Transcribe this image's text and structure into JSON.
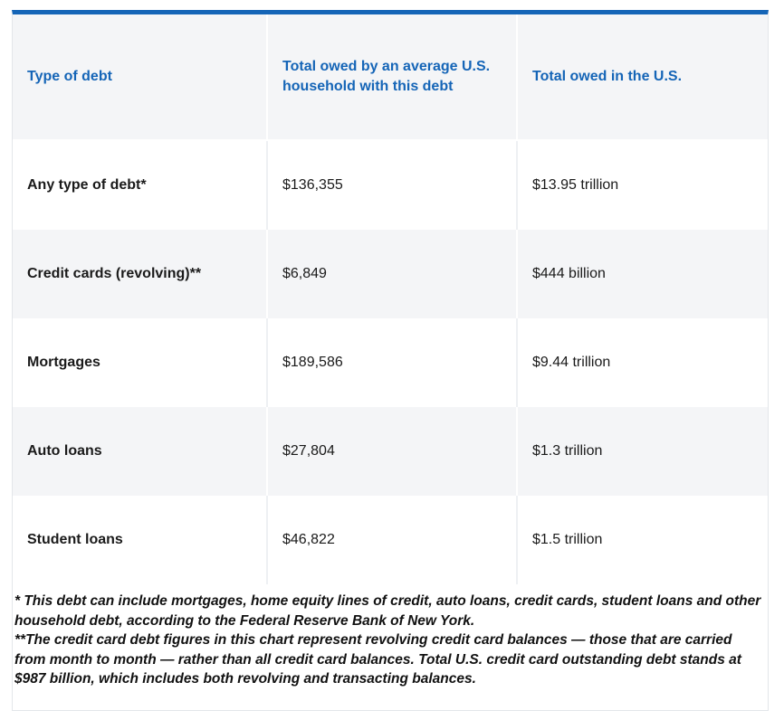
{
  "table": {
    "headers": [
      "Type of debt",
      "Total owed by an average U.S. household with this debt",
      "Total owed in the U.S."
    ],
    "rows": [
      {
        "type": "Any type of debt*",
        "household": "$136,355",
        "total": "$13.95 trillion"
      },
      {
        "type": "Credit cards (revolving)**",
        "household": "$6,849",
        "total": "$444 billion"
      },
      {
        "type": "Mortgages",
        "household": "$189,586",
        "total": "$9.44 trillion"
      },
      {
        "type": "Auto loans",
        "household": "$27,804",
        "total": "$1.3 trillion"
      },
      {
        "type": "Student loans",
        "household": "$46,822",
        "total": "$1.5 trillion"
      }
    ]
  },
  "footnotes": {
    "note1": "* This debt can include mortgages, home equity lines of credit, auto loans, credit cards, student loans and other household debt, according to the Federal Reserve Bank of New York.",
    "note2": "**The credit card debt figures in this chart represent revolving credit card balances — those that are carried from month to month — rather than all credit card balances. Total U.S. credit card outstanding debt stands at $987 billion, which includes both revolving and transacting balances."
  },
  "colors": {
    "accent": "#1565b7",
    "stripe": "#f4f5f7"
  }
}
